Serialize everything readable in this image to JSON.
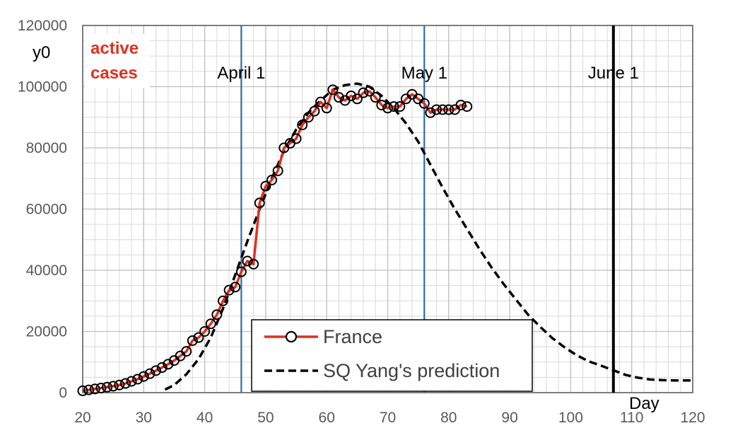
{
  "chart_data": {
    "type": "line",
    "title_lines": [
      "active",
      "cases"
    ],
    "ylabel": "y0",
    "xlabel": "Day",
    "xlim": [
      20,
      120
    ],
    "ylim": [
      0,
      120000
    ],
    "x_ticks": [
      20,
      30,
      40,
      50,
      60,
      70,
      80,
      90,
      100,
      110,
      120
    ],
    "y_ticks": [
      0,
      20000,
      40000,
      60000,
      80000,
      100000,
      120000
    ],
    "grid": true,
    "annotations": [
      {
        "label": "April 1",
        "x": 46,
        "color": "#2e6da4",
        "weight": "thin"
      },
      {
        "label": "May 1",
        "x": 76,
        "color": "#2e6da4",
        "weight": "thin"
      },
      {
        "label": "June 1",
        "x": 107,
        "color": "#000000",
        "weight": "thick"
      }
    ],
    "legend_position": "bottom-center",
    "series": [
      {
        "name": "France",
        "style": "line-with-markers",
        "color": "#e0301e",
        "marker_color": "#000000",
        "x": [
          20,
          21,
          22,
          23,
          24,
          25,
          26,
          27,
          28,
          29,
          30,
          31,
          32,
          33,
          34,
          35,
          36,
          37,
          38,
          39,
          40,
          41,
          42,
          43,
          44,
          45,
          46,
          47,
          48,
          49,
          50,
          51,
          52,
          53,
          54,
          55,
          56,
          57,
          58,
          59,
          60,
          61,
          62,
          63,
          64,
          65,
          66,
          67,
          68,
          69,
          70,
          71,
          72,
          73,
          74,
          75,
          76,
          77,
          78,
          79,
          80,
          81,
          82,
          83
        ],
        "y": [
          600,
          900,
          1200,
          1500,
          1800,
          2100,
          2500,
          3000,
          3700,
          4400,
          5300,
          6200,
          7200,
          8200,
          9300,
          10500,
          12000,
          13500,
          17000,
          18000,
          20000,
          22500,
          25500,
          30000,
          33500,
          34500,
          39500,
          43000,
          42000,
          62000,
          67500,
          69500,
          72500,
          80000,
          81500,
          83000,
          87500,
          90000,
          92000,
          95000,
          93000,
          99000,
          96500,
          95500,
          97000,
          96000,
          98000,
          98500,
          96500,
          94000,
          93000,
          93500,
          93500,
          96000,
          97500,
          96000,
          94500,
          91500,
          92500,
          92500,
          92500,
          92500,
          94000,
          93500
        ]
      },
      {
        "name": "SQ Yang's prediction",
        "style": "dashed",
        "color": "#000000",
        "x": [
          33.5,
          35,
          37,
          39,
          41,
          43,
          45,
          47,
          49,
          51,
          53,
          55,
          57,
          59,
          61,
          63,
          65,
          67,
          69,
          71,
          73,
          75,
          77,
          79,
          81,
          83,
          85,
          87,
          89,
          91,
          93,
          95,
          97,
          99,
          101,
          103,
          105,
          107,
          109,
          111,
          113,
          115,
          117,
          120
        ],
        "y": [
          1000,
          2500,
          6000,
          11000,
          18000,
          27500,
          38500,
          49500,
          60000,
          70000,
          79000,
          86000,
          91500,
          95500,
          99000,
          100500,
          101000,
          100000,
          97000,
          93000,
          88000,
          82000,
          74500,
          67000,
          60000,
          53500,
          47000,
          41000,
          35500,
          30500,
          25500,
          21500,
          17800,
          14800,
          12200,
          10200,
          8800,
          7300,
          5800,
          4900,
          4300,
          4100,
          4000,
          4000
        ]
      }
    ]
  }
}
